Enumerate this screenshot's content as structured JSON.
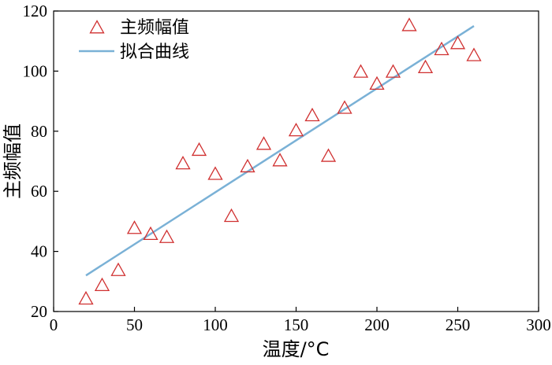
{
  "chart_data": {
    "type": "scatter",
    "xlabel": "温度/°C",
    "ylabel": "主频幅值",
    "xlim": [
      0,
      300
    ],
    "ylim": [
      20,
      120
    ],
    "xticks": [
      0,
      50,
      100,
      150,
      200,
      250,
      300
    ],
    "yticks": [
      20,
      40,
      60,
      80,
      100,
      120
    ],
    "grid": false,
    "legend_position": "top-left",
    "legend": [
      "主频幅值",
      "拟合曲线"
    ],
    "series": [
      {
        "name": "主频幅值",
        "marker": "triangle",
        "color": "#d03030",
        "x": [
          20,
          30,
          40,
          50,
          60,
          70,
          80,
          90,
          100,
          110,
          120,
          130,
          140,
          150,
          160,
          170,
          180,
          190,
          200,
          210,
          220,
          230,
          240,
          250,
          260
        ],
        "y": [
          24,
          28.5,
          33.5,
          47.5,
          45.5,
          44.5,
          69,
          73.5,
          65.5,
          51.5,
          68,
          75.5,
          70,
          80,
          85,
          71.5,
          87.5,
          99.5,
          95.5,
          99.5,
          115,
          101,
          107,
          109,
          105
        ]
      },
      {
        "name": "拟合曲线",
        "type": "line",
        "color": "#7ab1d6",
        "x": [
          20,
          260
        ],
        "y": [
          32,
          115
        ]
      }
    ]
  }
}
